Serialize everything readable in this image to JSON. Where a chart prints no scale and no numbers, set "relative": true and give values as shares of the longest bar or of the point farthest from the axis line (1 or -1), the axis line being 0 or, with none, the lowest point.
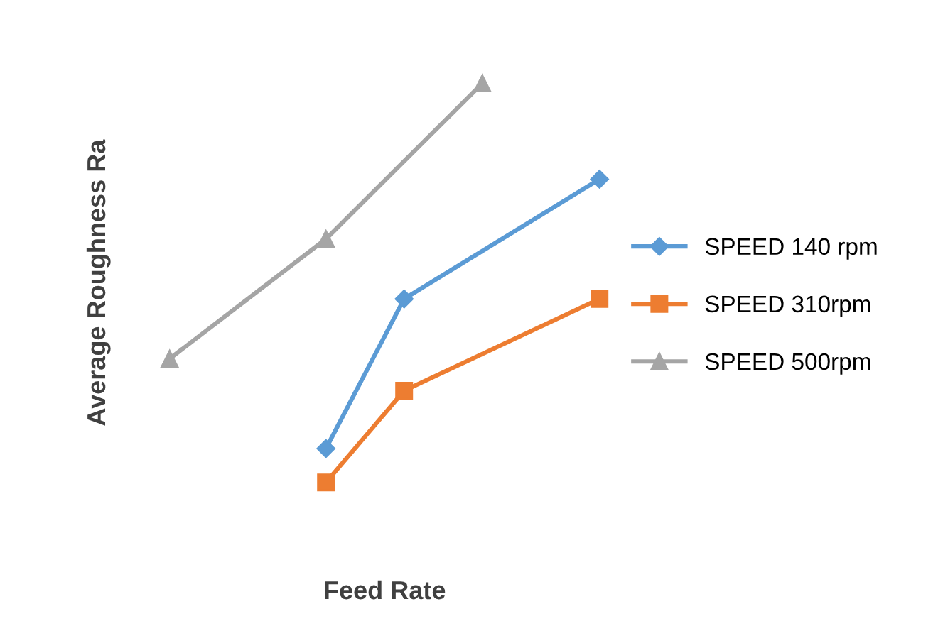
{
  "chart_data": {
    "type": "line",
    "xlabel": "Feed Rate",
    "ylabel": "Average Roughness Ra",
    "relative": true,
    "legend": "right",
    "categories": [
      null,
      null,
      null,
      null,
      null,
      null,
      null,
      null,
      null,
      null,
      null,
      null
    ],
    "series": [
      {
        "name": "SPEED 140 rpm",
        "color": "#5b9bd5",
        "marker": "diamond",
        "values": [
          null,
          null,
          null,
          null,
          0.085,
          null,
          0.46,
          null,
          null,
          null,
          null,
          0.76
        ]
      },
      {
        "name": "SPEED 310rpm",
        "color": "#ed7d31",
        "marker": "square",
        "values": [
          null,
          null,
          null,
          null,
          0.0,
          null,
          0.23,
          null,
          null,
          null,
          null,
          0.46
        ]
      },
      {
        "name": "SPEED 500rpm",
        "color": "#a5a5a5",
        "marker": "triangle",
        "values": [
          0.31,
          null,
          null,
          null,
          0.61,
          null,
          null,
          null,
          1.0,
          null,
          null,
          null
        ]
      }
    ]
  }
}
